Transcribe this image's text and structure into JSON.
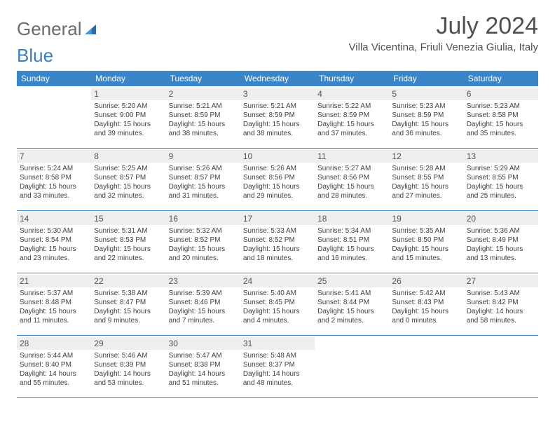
{
  "logo": {
    "text1": "General",
    "text2": "Blue"
  },
  "title": "July 2024",
  "location": "Villa Vicentina, Friuli Venezia Giulia, Italy",
  "colors": {
    "header_bg": "#3a85c7",
    "header_text": "#ffffff",
    "daynum_bg": "#eeeeee",
    "border": "#3a85c7",
    "logo_gray": "#6b6b6b",
    "logo_blue": "#3a7fbf"
  },
  "day_headers": [
    "Sunday",
    "Monday",
    "Tuesday",
    "Wednesday",
    "Thursday",
    "Friday",
    "Saturday"
  ],
  "weeks": [
    [
      null,
      {
        "n": "1",
        "sr": "5:20 AM",
        "ss": "9:00 PM",
        "dl": "15 hours and 39 minutes."
      },
      {
        "n": "2",
        "sr": "5:21 AM",
        "ss": "8:59 PM",
        "dl": "15 hours and 38 minutes."
      },
      {
        "n": "3",
        "sr": "5:21 AM",
        "ss": "8:59 PM",
        "dl": "15 hours and 38 minutes."
      },
      {
        "n": "4",
        "sr": "5:22 AM",
        "ss": "8:59 PM",
        "dl": "15 hours and 37 minutes."
      },
      {
        "n": "5",
        "sr": "5:23 AM",
        "ss": "8:59 PM",
        "dl": "15 hours and 36 minutes."
      },
      {
        "n": "6",
        "sr": "5:23 AM",
        "ss": "8:58 PM",
        "dl": "15 hours and 35 minutes."
      }
    ],
    [
      {
        "n": "7",
        "sr": "5:24 AM",
        "ss": "8:58 PM",
        "dl": "15 hours and 33 minutes."
      },
      {
        "n": "8",
        "sr": "5:25 AM",
        "ss": "8:57 PM",
        "dl": "15 hours and 32 minutes."
      },
      {
        "n": "9",
        "sr": "5:26 AM",
        "ss": "8:57 PM",
        "dl": "15 hours and 31 minutes."
      },
      {
        "n": "10",
        "sr": "5:26 AM",
        "ss": "8:56 PM",
        "dl": "15 hours and 29 minutes."
      },
      {
        "n": "11",
        "sr": "5:27 AM",
        "ss": "8:56 PM",
        "dl": "15 hours and 28 minutes."
      },
      {
        "n": "12",
        "sr": "5:28 AM",
        "ss": "8:55 PM",
        "dl": "15 hours and 27 minutes."
      },
      {
        "n": "13",
        "sr": "5:29 AM",
        "ss": "8:55 PM",
        "dl": "15 hours and 25 minutes."
      }
    ],
    [
      {
        "n": "14",
        "sr": "5:30 AM",
        "ss": "8:54 PM",
        "dl": "15 hours and 23 minutes."
      },
      {
        "n": "15",
        "sr": "5:31 AM",
        "ss": "8:53 PM",
        "dl": "15 hours and 22 minutes."
      },
      {
        "n": "16",
        "sr": "5:32 AM",
        "ss": "8:52 PM",
        "dl": "15 hours and 20 minutes."
      },
      {
        "n": "17",
        "sr": "5:33 AM",
        "ss": "8:52 PM",
        "dl": "15 hours and 18 minutes."
      },
      {
        "n": "18",
        "sr": "5:34 AM",
        "ss": "8:51 PM",
        "dl": "15 hours and 16 minutes."
      },
      {
        "n": "19",
        "sr": "5:35 AM",
        "ss": "8:50 PM",
        "dl": "15 hours and 15 minutes."
      },
      {
        "n": "20",
        "sr": "5:36 AM",
        "ss": "8:49 PM",
        "dl": "15 hours and 13 minutes."
      }
    ],
    [
      {
        "n": "21",
        "sr": "5:37 AM",
        "ss": "8:48 PM",
        "dl": "15 hours and 11 minutes."
      },
      {
        "n": "22",
        "sr": "5:38 AM",
        "ss": "8:47 PM",
        "dl": "15 hours and 9 minutes."
      },
      {
        "n": "23",
        "sr": "5:39 AM",
        "ss": "8:46 PM",
        "dl": "15 hours and 7 minutes."
      },
      {
        "n": "24",
        "sr": "5:40 AM",
        "ss": "8:45 PM",
        "dl": "15 hours and 4 minutes."
      },
      {
        "n": "25",
        "sr": "5:41 AM",
        "ss": "8:44 PM",
        "dl": "15 hours and 2 minutes."
      },
      {
        "n": "26",
        "sr": "5:42 AM",
        "ss": "8:43 PM",
        "dl": "15 hours and 0 minutes."
      },
      {
        "n": "27",
        "sr": "5:43 AM",
        "ss": "8:42 PM",
        "dl": "14 hours and 58 minutes."
      }
    ],
    [
      {
        "n": "28",
        "sr": "5:44 AM",
        "ss": "8:40 PM",
        "dl": "14 hours and 55 minutes."
      },
      {
        "n": "29",
        "sr": "5:46 AM",
        "ss": "8:39 PM",
        "dl": "14 hours and 53 minutes."
      },
      {
        "n": "30",
        "sr": "5:47 AM",
        "ss": "8:38 PM",
        "dl": "14 hours and 51 minutes."
      },
      {
        "n": "31",
        "sr": "5:48 AM",
        "ss": "8:37 PM",
        "dl": "14 hours and 48 minutes."
      },
      null,
      null,
      null
    ]
  ],
  "labels": {
    "sunrise": "Sunrise:",
    "sunset": "Sunset:",
    "daylight": "Daylight:"
  }
}
